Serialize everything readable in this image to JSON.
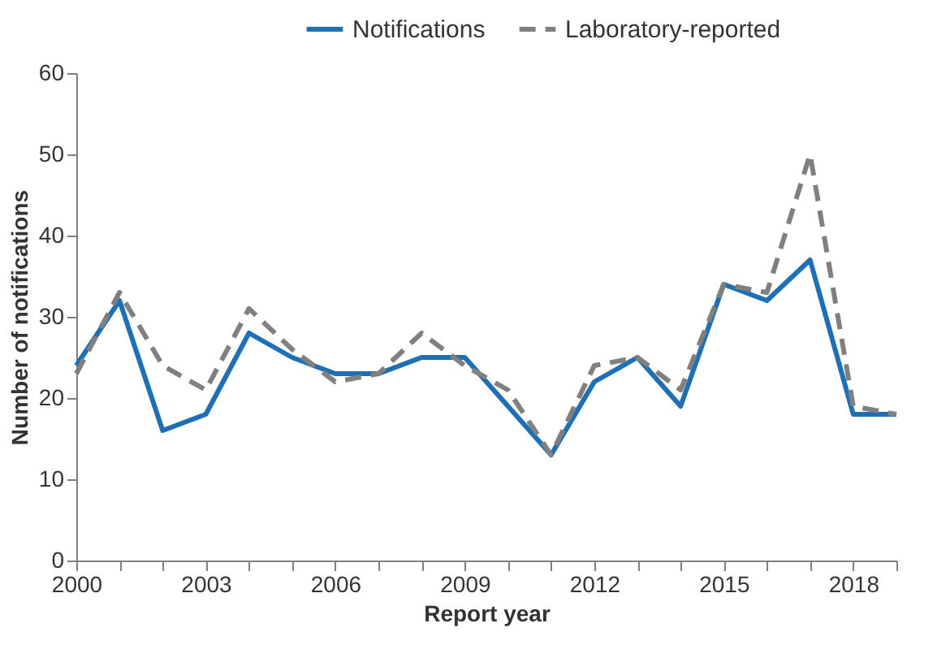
{
  "chart_data": {
    "type": "line",
    "xlabel": "Report year",
    "ylabel": "Number of notifications",
    "x": [
      2000,
      2001,
      2002,
      2003,
      2004,
      2005,
      2006,
      2007,
      2008,
      2009,
      2010,
      2011,
      2012,
      2013,
      2014,
      2015,
      2016,
      2017,
      2018,
      2019
    ],
    "series": [
      {
        "name": "Notifications",
        "color": "#1f6fb5",
        "line_style": "solid",
        "values": [
          24,
          32,
          16,
          18,
          28,
          25,
          23,
          23,
          25,
          25,
          19,
          13,
          22,
          25,
          19,
          34,
          32,
          37,
          18,
          18
        ]
      },
      {
        "name": "Laboratory-reported",
        "color": "#808080",
        "line_style": "dashed",
        "values": [
          23,
          33,
          24,
          21,
          31,
          26,
          22,
          23,
          28,
          24,
          21,
          13,
          24,
          25,
          21,
          34,
          33,
          50,
          19,
          18
        ]
      }
    ],
    "xlim": [
      2000,
      2019
    ],
    "xticks": [
      2000,
      {
        "value": 2001,
        "label": null
      },
      {
        "value": 2002,
        "label": null
      },
      2003,
      {
        "value": 2004,
        "label": null
      },
      {
        "value": 2005,
        "label": null
      },
      2006,
      {
        "value": 2007,
        "label": null
      },
      {
        "value": 2008,
        "label": null
      },
      2009,
      {
        "value": 2010,
        "label": null
      },
      {
        "value": 2011,
        "label": null
      },
      2012,
      {
        "value": 2013,
        "label": null
      },
      {
        "value": 2014,
        "label": null
      },
      2015,
      {
        "value": 2016,
        "label": null
      },
      {
        "value": 2017,
        "label": null
      },
      2018,
      {
        "value": 2019,
        "label": null
      }
    ],
    "ylim": [
      0,
      60
    ],
    "yticks": [
      0,
      10,
      20,
      30,
      40,
      50,
      60
    ],
    "grid": false,
    "legend": "top right",
    "marker": "none"
  }
}
